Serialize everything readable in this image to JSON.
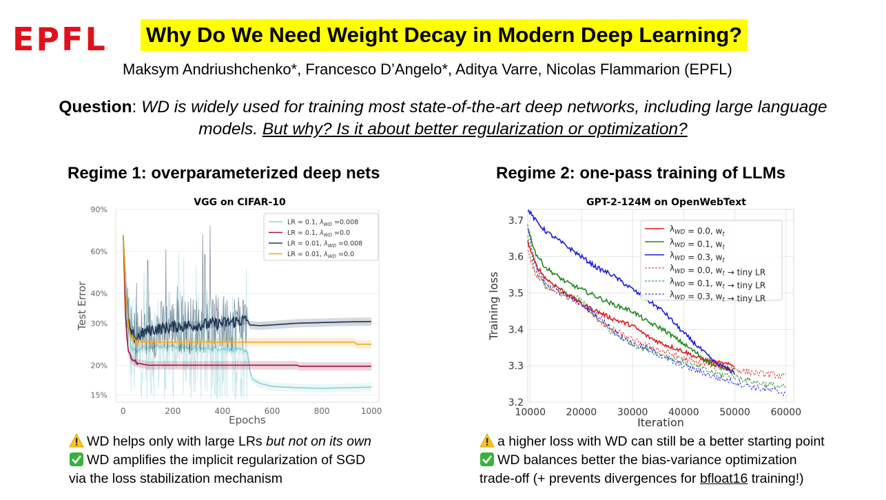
{
  "logo": "EPFL",
  "title": "Why Do We Need Weight Decay in Modern Deep Learning?",
  "authors": "Maksym Andriushchenko*, Francesco D’Angelo*, Aditya Varre, Nicolas Flammarion (EPFL)",
  "question": {
    "label": "Question",
    "colon": ": ",
    "text": "WD is widely used for training most state-of-the-art deep networks, including large language models. ",
    "underlined": "But why? Is it about better regularization or optimization?"
  },
  "regime1": {
    "heading": "Regime 1: overparameterized deep nets",
    "bullets": [
      {
        "icon": "warning-icon",
        "text": "WD helps only with large LRs ",
        "emph": "but not on its own"
      },
      {
        "icon": "check-icon",
        "text": "WD amplifies the implicit regularization of SGD"
      },
      {
        "icon": "",
        "text": "via the loss stabilization mechanism"
      }
    ]
  },
  "regime2": {
    "heading": "Regime 2: one-pass training of LLMs",
    "bullets": [
      {
        "icon": "warning-icon",
        "text": "a higher loss with WD can still be a better starting point"
      },
      {
        "icon": "check-icon",
        "text": "WD balances better the bias-variance optimization"
      },
      {
        "icon": "",
        "text": "trade-off (+ prevents divergences for ",
        "underlined": "bfloat16",
        "after": " training!)"
      }
    ]
  },
  "colors": {
    "accent": "#ffff00",
    "logo": "#e1101a"
  },
  "chart_data": [
    {
      "type": "line",
      "title": "VGG on CIFAR-10",
      "xlabel": "Epochs",
      "ylabel": "Test Error",
      "xlim": [
        -30,
        1030
      ],
      "ylim": [
        14,
        90
      ],
      "yscale": "log",
      "xticks": [
        0,
        200,
        400,
        600,
        800,
        1000
      ],
      "yticks": [
        {
          "v": 15,
          "label": "15%"
        },
        {
          "v": 20,
          "label": "20%"
        },
        {
          "v": 30,
          "label": "30%"
        },
        {
          "v": 40,
          "label": "40%"
        },
        {
          "v": 60,
          "label": "60%"
        },
        {
          "v": 90,
          "label": "90%"
        }
      ],
      "legend": "top-right",
      "series": [
        {
          "name": "LR = 0.1, λ_WD =0.008",
          "color": "#8fd0d6",
          "noisy": true,
          "x": [
            0,
            10,
            20,
            30,
            50,
            100,
            200,
            300,
            400,
            500,
            510,
            520,
            550,
            600,
            700,
            800,
            900,
            1000
          ],
          "y": [
            70,
            45,
            30,
            24,
            23,
            24,
            24,
            23.5,
            23.5,
            23,
            19,
            17.5,
            16.8,
            16.3,
            16.1,
            16.0,
            16.1,
            16.2
          ]
        },
        {
          "name": "LR = 0.1, λ_WD =0.0",
          "color": "#a0123e",
          "noisy": false,
          "x": [
            0,
            5,
            10,
            20,
            30,
            50,
            100,
            200,
            300,
            400,
            500,
            600,
            700,
            710,
            800,
            900,
            1000
          ],
          "y": [
            70,
            45,
            30,
            23,
            21.5,
            20.5,
            20,
            20,
            20,
            20,
            20,
            20,
            20,
            19.8,
            19.8,
            19.8,
            19.8
          ]
        },
        {
          "name": "LR = 0.01, λ_WD =0.008",
          "color": "#1e3553",
          "noisy": true,
          "x": [
            0,
            10,
            20,
            30,
            50,
            100,
            200,
            300,
            400,
            500,
            510,
            550,
            600,
            700,
            800,
            900,
            1000
          ],
          "y": [
            70,
            40,
            31,
            27,
            26,
            28,
            29,
            29.5,
            30,
            31,
            29.5,
            29.3,
            29.5,
            30,
            30.2,
            30.4,
            30.5
          ]
        },
        {
          "name": "LR = 0.01, λ_WD =0.0",
          "color": "#f5a51c",
          "noisy": false,
          "x": [
            0,
            10,
            20,
            30,
            40,
            60,
            100,
            200,
            300,
            400,
            500,
            600,
            700,
            800,
            900,
            930,
            940,
            1000
          ],
          "y": [
            70,
            40,
            30,
            26.5,
            25.5,
            25,
            25,
            25,
            25,
            25,
            25,
            25,
            25,
            25,
            25,
            25,
            24.5,
            24.5
          ]
        }
      ]
    },
    {
      "type": "line",
      "title": "GPT-2-124M on OpenWebText",
      "xlabel": "Iteration",
      "ylabel": "Training loss",
      "xlim": [
        9500,
        61500
      ],
      "ylim": [
        3.2,
        3.73
      ],
      "xticks": [
        10000,
        20000,
        30000,
        40000,
        50000,
        60000
      ],
      "yticks": [
        3.2,
        3.3,
        3.4,
        3.5,
        3.6,
        3.7
      ],
      "legend": "top-right",
      "series": [
        {
          "name": "λ_WD = 0.0, w_t",
          "color": "#e41a1a",
          "dashed": false,
          "x": [
            9500,
            11000,
            13000,
            15000,
            17000,
            20000,
            23000,
            26000,
            30000,
            33000,
            36000,
            40000,
            43000,
            46000,
            50000
          ],
          "y": [
            3.64,
            3.58,
            3.54,
            3.52,
            3.5,
            3.47,
            3.45,
            3.43,
            3.41,
            3.38,
            3.36,
            3.34,
            3.32,
            3.31,
            3.3
          ]
        },
        {
          "name": "λ_WD = 0.1, w_t",
          "color": "#1a8a1a",
          "dashed": false,
          "x": [
            9500,
            11000,
            13000,
            15000,
            17000,
            20000,
            23000,
            26000,
            30000,
            33000,
            36000,
            40000,
            43000,
            46000,
            50000
          ],
          "y": [
            3.68,
            3.61,
            3.57,
            3.55,
            3.53,
            3.51,
            3.49,
            3.47,
            3.45,
            3.42,
            3.4,
            3.36,
            3.33,
            3.3,
            3.29
          ]
        },
        {
          "name": "λ_WD = 0.3, w_t",
          "color": "#1a1ae6",
          "dashed": false,
          "x": [
            9500,
            11000,
            13000,
            15000,
            17000,
            20000,
            23000,
            26000,
            30000,
            33000,
            36000,
            40000,
            43000,
            46000,
            50000
          ],
          "y": [
            3.73,
            3.7,
            3.67,
            3.65,
            3.63,
            3.6,
            3.57,
            3.55,
            3.51,
            3.48,
            3.45,
            3.39,
            3.35,
            3.31,
            3.28
          ]
        },
        {
          "name": "λ_WD = 0.0, w_t → tiny LR",
          "color": "#e41a1a",
          "dashed": true,
          "x": [
            9500,
            11000,
            13000,
            16000,
            20000,
            23000,
            26000,
            30000,
            34000,
            38000,
            42000,
            46000,
            50000,
            54000,
            58000,
            60000
          ],
          "y": [
            3.62,
            3.55,
            3.52,
            3.5,
            3.47,
            3.43,
            3.4,
            3.37,
            3.35,
            3.33,
            3.31,
            3.3,
            3.29,
            3.28,
            3.275,
            3.27
          ]
        },
        {
          "name": "λ_WD = 0.1, w_t → tiny LR",
          "color": "#1a8a1a",
          "dashed": true,
          "x": [
            9500,
            11000,
            13000,
            16000,
            20000,
            23000,
            26000,
            30000,
            34000,
            38000,
            42000,
            46000,
            50000,
            54000,
            58000,
            60000
          ],
          "y": [
            3.65,
            3.56,
            3.52,
            3.5,
            3.48,
            3.43,
            3.39,
            3.36,
            3.34,
            3.32,
            3.3,
            3.28,
            3.27,
            3.255,
            3.245,
            3.24
          ]
        },
        {
          "name": "λ_WD = 0.3, w_t → tiny LR",
          "color": "#1a1ae6",
          "dashed": true,
          "x": [
            9500,
            11000,
            13000,
            16000,
            20000,
            23000,
            26000,
            30000,
            34000,
            38000,
            42000,
            46000,
            50000,
            54000,
            58000,
            60000
          ],
          "y": [
            3.68,
            3.57,
            3.53,
            3.5,
            3.47,
            3.44,
            3.4,
            3.36,
            3.34,
            3.31,
            3.29,
            3.27,
            3.255,
            3.24,
            3.23,
            3.225
          ]
        }
      ]
    }
  ]
}
